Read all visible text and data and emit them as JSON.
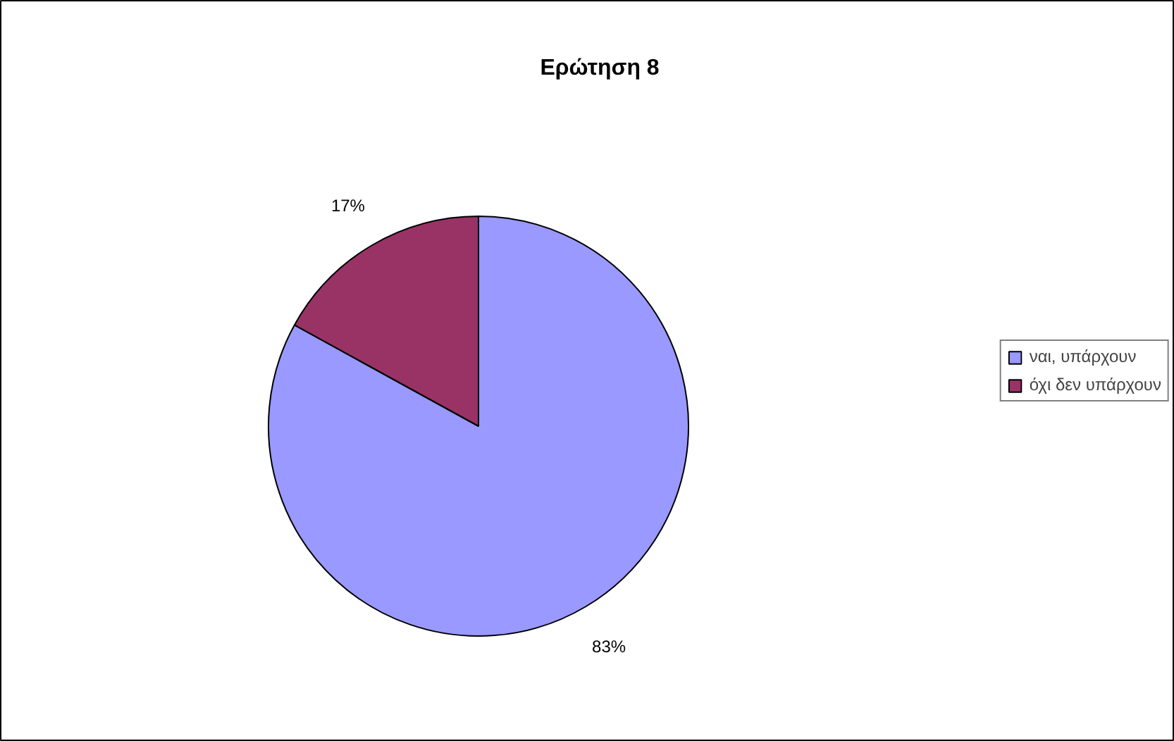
{
  "chart_data": {
    "type": "pie",
    "title": "Ερώτηση 8",
    "categories": [
      "ναι, υπάρχουν",
      "όχι δεν υπάρχουν"
    ],
    "values": [
      83,
      17
    ],
    "colors": [
      "#9999ff",
      "#993366"
    ],
    "value_labels": [
      "83%",
      "17%"
    ],
    "legend": "right"
  }
}
